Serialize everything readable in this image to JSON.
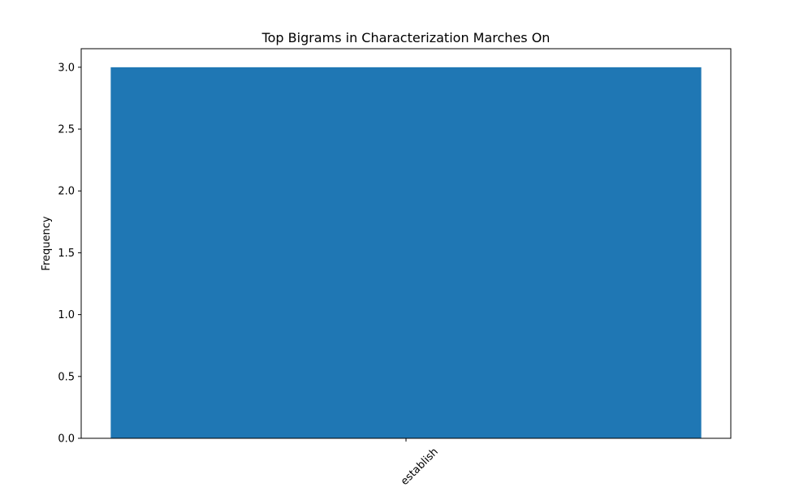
{
  "chart_data": {
    "type": "bar",
    "title": "Top Bigrams in Characterization Marches On",
    "xlabel": "",
    "ylabel": "Frequency",
    "categories": [
      "establish"
    ],
    "values": [
      3
    ],
    "ylim": [
      0,
      3.15
    ],
    "yticks": [
      "0.0",
      "0.5",
      "1.0",
      "1.5",
      "2.0",
      "2.5",
      "3.0"
    ],
    "bar_color": "#1f77b4",
    "grid": false,
    "legend": "none"
  }
}
